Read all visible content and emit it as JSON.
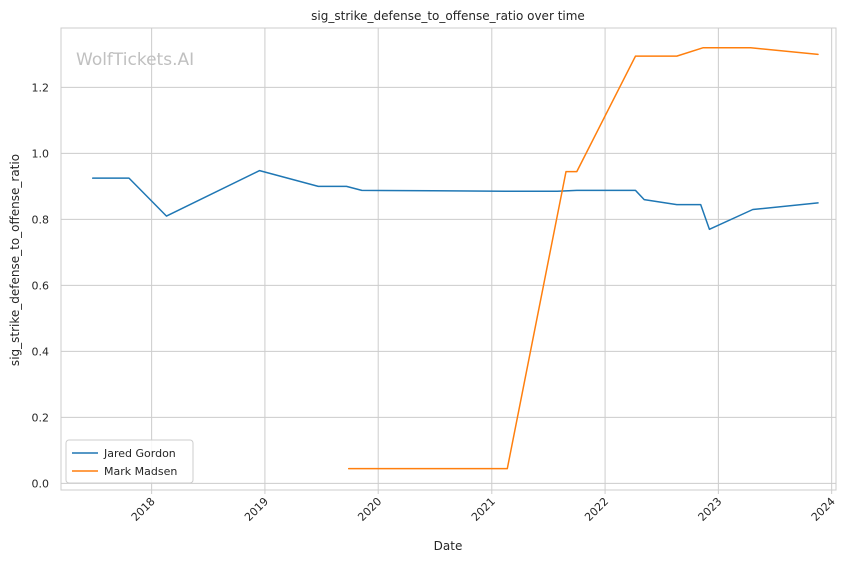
{
  "chart_data": {
    "type": "line",
    "title": "sig_strike_defense_to_offense_ratio over time",
    "xlabel": "Date",
    "ylabel": "sig_strike_defense_to_offense_ratio",
    "watermark": "WolfTickets.AI",
    "x_type": "date",
    "xlim": [
      "2017-03-15",
      "2024-01-15"
    ],
    "ylim": [
      -0.02,
      1.38
    ],
    "x_ticks": [
      "2018-01-01",
      "2019-01-01",
      "2020-01-01",
      "2021-01-01",
      "2022-01-01",
      "2023-01-01",
      "2024-01-01"
    ],
    "x_tick_labels": [
      "2018",
      "2019",
      "2020",
      "2021",
      "2022",
      "2023",
      "2024"
    ],
    "y_ticks": [
      0.0,
      0.2,
      0.4,
      0.6,
      0.8,
      1.0,
      1.2
    ],
    "y_tick_labels": [
      "0.0",
      "0.2",
      "0.4",
      "0.6",
      "0.8",
      "1.0",
      "1.2"
    ],
    "grid": true,
    "legend_position": "lower-left",
    "series": [
      {
        "name": "Jared Gordon",
        "color": "#1f77b4",
        "x": [
          "2017-06-25",
          "2017-10-20",
          "2018-02-18",
          "2018-12-15",
          "2019-06-22",
          "2019-09-21",
          "2019-11-09",
          "2020-06-27",
          "2021-02-13",
          "2021-07-31",
          "2021-10-02",
          "2022-04-09",
          "2022-05-07",
          "2022-08-20",
          "2022-11-05",
          "2022-12-03",
          "2023-04-22",
          "2023-11-18"
        ],
        "values": [
          0.925,
          0.925,
          0.81,
          0.948,
          0.9,
          0.9,
          0.888,
          0.887,
          0.885,
          0.885,
          0.888,
          0.888,
          0.86,
          0.845,
          0.845,
          0.77,
          0.83,
          0.85
        ]
      },
      {
        "name": "Mark Madsen",
        "color": "#ff7f0e",
        "x": [
          "2019-09-28",
          "2021-02-20",
          "2021-08-28",
          "2021-10-02",
          "2022-04-09",
          "2022-08-20",
          "2022-11-12",
          "2023-04-15",
          "2023-11-18"
        ],
        "values": [
          0.045,
          0.045,
          0.945,
          0.945,
          1.295,
          1.295,
          1.32,
          1.32,
          1.3
        ]
      }
    ]
  }
}
